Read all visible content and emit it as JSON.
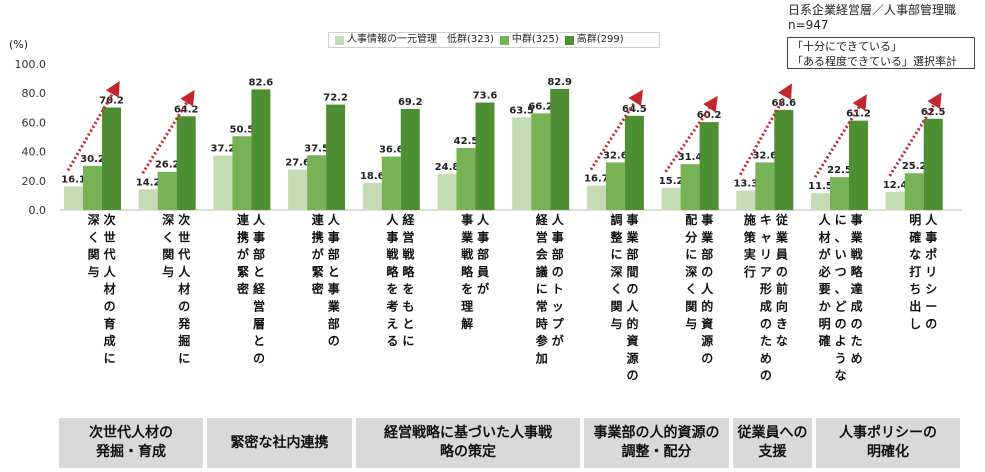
{
  "header": {
    "respondents": "日系企業経営層／人事部管理職",
    "n": "n=947",
    "note_line1": "「十分にできている」",
    "note_line2": "「ある程度できている」選択率計",
    "unit": "(%)"
  },
  "legend": {
    "low": "人事情報の一元管理　低群(323)",
    "mid": "中群(325)",
    "high": "高群(299)"
  },
  "colors": {
    "low": "#c5dbb3",
    "mid": "#77b255",
    "high": "#4f8f33",
    "arrow": "#c1272d",
    "group_bg": "#d9d9d9"
  },
  "groups": [
    {
      "label_line1": "次世代人材の",
      "label_line2": "発掘・育成"
    },
    {
      "label_line1": "緊密な社内連携",
      "label_line2": ""
    },
    {
      "label_line1": "経営戦略に基づいた人事戦",
      "label_line2": "略の策定"
    },
    {
      "label_line1": "事業部の人的資源の",
      "label_line2": "調整・配分"
    },
    {
      "label_line1": "従業員への",
      "label_line2": "支援"
    },
    {
      "label_line1": "人事ポリシーの",
      "label_line2": "明確化"
    }
  ],
  "chart_data": {
    "type": "bar",
    "ylim": [
      0,
      100
    ],
    "yticks": [
      "0.0",
      "20.0",
      "40.0",
      "60.0",
      "80.0",
      "100.0"
    ],
    "categories": [
      "次世代人材の育成に深く関与",
      "次世代人材の発掘に深く関与",
      "人事部と経営層との連携が緊密",
      "人事部と事業部の連携が緊密",
      "経営戦略をもとに人事戦略を考える",
      "人事部員が事業戦略を理解",
      "人事部のトップが経営会議に常時参加",
      "事業部間の人的資源の調整に深く関与",
      "事業部の人的資源の配分に深く関与",
      "従業員の前向きなキャリア形成のための施策実行",
      "事業戦略達成のために、いつ、どのような人材が必要か明確",
      "人事ポリシーの明確な打ち出し"
    ],
    "category_lines": [
      [
        "次世代人材の育成に",
        "深く関与"
      ],
      [
        "次世代人材の発掘に",
        "深く関与"
      ],
      [
        "人事部と経営層との",
        "連携が緊密"
      ],
      [
        "人事部と事業部の",
        "連携が緊密"
      ],
      [
        "経営戦略をもとに",
        "人事戦略を考える"
      ],
      [
        "人事部員が",
        "事業戦略を理解"
      ],
      [
        "人事部のトップが",
        "経営会議に常時参加"
      ],
      [
        "事業部間の人的資源の",
        "調整に深く関与"
      ],
      [
        "事業部の人的資源の",
        "配分に深く関与"
      ],
      [
        "従業員の前向きな",
        "キャリア形成のための",
        "施策実行"
      ],
      [
        "事業戦略達成のため",
        "に、いつ、どのような",
        "人材が必要か明確"
      ],
      [
        "人事ポリシーの",
        "明確な打ち出し"
      ]
    ],
    "series": [
      {
        "name": "人事情報の一元管理　低群(323)",
        "values": [
          16.1,
          14.2,
          37.2,
          27.6,
          18.6,
          24.8,
          63.5,
          16.7,
          15.2,
          13.3,
          11.5,
          12.4
        ]
      },
      {
        "name": "中群(325)",
        "values": [
          30.2,
          26.2,
          50.5,
          37.5,
          36.6,
          42.5,
          66.2,
          32.6,
          31.4,
          32.6,
          22.5,
          25.2
        ]
      },
      {
        "name": "高群(299)",
        "values": [
          70.2,
          64.2,
          82.6,
          72.2,
          69.2,
          73.6,
          82.9,
          64.5,
          60.2,
          68.6,
          61.2,
          62.5
        ]
      }
    ],
    "arrow_categories": [
      0,
      1,
      7,
      8,
      9,
      10,
      11
    ]
  }
}
